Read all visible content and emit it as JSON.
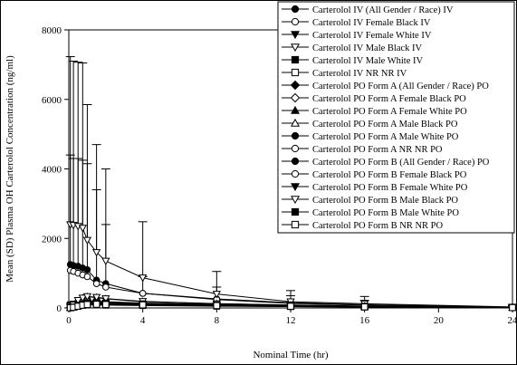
{
  "chart_data": {
    "type": "line",
    "title": "",
    "xlabel": "Nominal Time (hr)",
    "ylabel": "Mean (SD) Plasma OH Carterolol Concentration (ng/ml)",
    "xlim": [
      0,
      24
    ],
    "ylim": [
      0,
      8000
    ],
    "x_ticks": [
      "0",
      "4",
      "8",
      "12",
      "16",
      "20",
      "24"
    ],
    "y_ticks": [
      "0",
      "2000",
      "4000",
      "6000",
      "8000"
    ],
    "grid": false,
    "legend_position": "top-right",
    "x": [
      0.0833,
      0.25,
      0.5,
      0.75,
      1,
      1.5,
      2,
      4,
      8,
      12,
      16,
      24
    ],
    "series": [
      {
        "name": "Carterolol IV (All Gender / Race) IV",
        "marker": "circle-filled",
        "values": [
          1250,
          1220,
          1200,
          1150,
          1100,
          800,
          700,
          420,
          260,
          150,
          90,
          20
        ],
        "sd_upper": [
          4400,
          4300,
          4300,
          4250,
          4150,
          3400,
          2400,
          900,
          600,
          350,
          220,
          60
        ]
      },
      {
        "name": "Carterolol IV  Female Black  IV",
        "marker": "circle-open",
        "values": [
          1080,
          1050,
          1000,
          950,
          900,
          700,
          600,
          420,
          240,
          130,
          80,
          20
        ],
        "sd_upper": [
          null,
          null,
          null,
          null,
          null,
          null,
          null,
          null,
          null,
          null,
          null,
          null
        ]
      },
      {
        "name": "Carterolol IV  Female White  IV",
        "marker": "triangle-down-filled",
        "values": [
          60,
          80,
          90,
          100,
          110,
          110,
          100,
          80,
          60,
          40,
          30,
          10
        ],
        "sd_upper": [
          null,
          null,
          null,
          null,
          null,
          null,
          null,
          null,
          null,
          null,
          null,
          null
        ]
      },
      {
        "name": "Carterolol IV  Male Black  IV",
        "marker": "triangle-down-open",
        "values": [
          2400,
          2380,
          2350,
          2300,
          1950,
          1600,
          1350,
          870,
          400,
          180,
          120,
          30
        ],
        "sd_upper": [
          7230,
          7100,
          7070,
          7050,
          5850,
          4700,
          4000,
          2480,
          1050,
          500,
          330,
          80
        ]
      },
      {
        "name": "Carterolol IV  Male White  IV",
        "marker": "square-filled",
        "values": [
          90,
          110,
          130,
          140,
          150,
          140,
          130,
          110,
          80,
          60,
          40,
          10
        ],
        "sd_upper": [
          null,
          null,
          null,
          null,
          null,
          null,
          null,
          null,
          null,
          null,
          null,
          null
        ]
      },
      {
        "name": "Carterolol IV  NR NR  IV",
        "marker": "square-open",
        "values": [
          50,
          60,
          70,
          80,
          90,
          90,
          80,
          70,
          50,
          40,
          25,
          10
        ],
        "sd_upper": [
          null,
          null,
          null,
          null,
          null,
          null,
          null,
          null,
          null,
          null,
          null,
          null
        ]
      },
      {
        "name": "Carterolol PO Form A (All Gender / Race) PO",
        "marker": "diamond-filled",
        "values": [
          10,
          30,
          80,
          120,
          150,
          160,
          150,
          120,
          90,
          60,
          40,
          15
        ],
        "sd_upper": [
          null,
          null,
          null,
          null,
          null,
          null,
          null,
          null,
          null,
          null,
          null,
          null
        ]
      },
      {
        "name": "Carterolol PO Form A  Female Black  PO",
        "marker": "diamond-open",
        "values": [
          10,
          40,
          110,
          150,
          180,
          190,
          170,
          130,
          100,
          70,
          40,
          15
        ],
        "sd_upper": [
          null,
          null,
          null,
          null,
          null,
          null,
          null,
          null,
          null,
          null,
          null,
          null
        ]
      },
      {
        "name": "Carterolol PO Form A  Female White  PO",
        "marker": "triangle-up-filled",
        "values": [
          5,
          20,
          60,
          100,
          130,
          140,
          130,
          110,
          80,
          55,
          35,
          12
        ],
        "sd_upper": [
          null,
          null,
          null,
          null,
          null,
          null,
          null,
          null,
          null,
          null,
          null,
          null
        ]
      },
      {
        "name": "Carterolol PO Form A  Male Black  PO",
        "marker": "triangle-up-open",
        "values": [
          20,
          80,
          200,
          280,
          320,
          300,
          260,
          180,
          120,
          80,
          50,
          15
        ],
        "sd_upper": [
          null,
          null,
          null,
          null,
          null,
          null,
          null,
          null,
          null,
          null,
          null,
          null
        ]
      },
      {
        "name": "Carterolol PO Form A  Male White  PO",
        "marker": "circle-filled",
        "values": [
          8,
          25,
          70,
          110,
          140,
          150,
          140,
          115,
          85,
          60,
          38,
          12
        ],
        "sd_upper": [
          null,
          null,
          null,
          null,
          null,
          null,
          null,
          null,
          null,
          null,
          null,
          null
        ]
      },
      {
        "name": "Carterolol PO Form A  NR NR  PO",
        "marker": "circle-open",
        "values": [
          5,
          20,
          50,
          80,
          100,
          110,
          100,
          90,
          70,
          50,
          30,
          10
        ],
        "sd_upper": [
          null,
          null,
          null,
          null,
          null,
          null,
          null,
          null,
          null,
          null,
          null,
          null
        ]
      },
      {
        "name": "Carterolol PO Form B (All Gender / Race) PO",
        "marker": "circle-filled",
        "values": [
          12,
          35,
          90,
          130,
          160,
          165,
          150,
          125,
          95,
          65,
          42,
          15
        ],
        "sd_upper": [
          null,
          null,
          null,
          null,
          null,
          null,
          null,
          null,
          null,
          null,
          null,
          null
        ]
      },
      {
        "name": "Carterolol PO Form B  Female Black  PO",
        "marker": "circle-open",
        "values": [
          10,
          40,
          120,
          170,
          200,
          200,
          180,
          140,
          100,
          70,
          45,
          15
        ],
        "sd_upper": [
          null,
          null,
          null,
          null,
          null,
          null,
          null,
          null,
          null,
          null,
          null,
          null
        ]
      },
      {
        "name": "Carterolol PO Form B  Female White  PO",
        "marker": "triangle-down-filled",
        "values": [
          6,
          22,
          65,
          105,
          135,
          145,
          135,
          112,
          82,
          56,
          36,
          12
        ],
        "sd_upper": [
          null,
          null,
          null,
          null,
          null,
          null,
          null,
          null,
          null,
          null,
          null,
          null
        ]
      },
      {
        "name": "Carterolol PO Form B  Male Black  PO",
        "marker": "triangle-down-open",
        "values": [
          25,
          90,
          220,
          290,
          330,
          310,
          270,
          190,
          125,
          85,
          52,
          16
        ],
        "sd_upper": [
          null,
          null,
          null,
          null,
          null,
          null,
          null,
          null,
          null,
          null,
          null,
          null
        ]
      },
      {
        "name": "Carterolol PO Form B  Male White  PO",
        "marker": "square-filled",
        "values": [
          8,
          28,
          75,
          115,
          145,
          150,
          140,
          118,
          88,
          60,
          38,
          12
        ],
        "sd_upper": [
          null,
          null,
          null,
          null,
          null,
          null,
          null,
          null,
          null,
          null,
          null,
          null
        ]
      },
      {
        "name": "Carterolol PO Form B  NR NR  PO",
        "marker": "square-open",
        "values": [
          5,
          18,
          48,
          78,
          98,
          105,
          98,
          88,
          68,
          48,
          30,
          10
        ],
        "sd_upper": [
          null,
          null,
          null,
          null,
          null,
          null,
          null,
          null,
          null,
          null,
          null,
          null
        ]
      }
    ]
  }
}
